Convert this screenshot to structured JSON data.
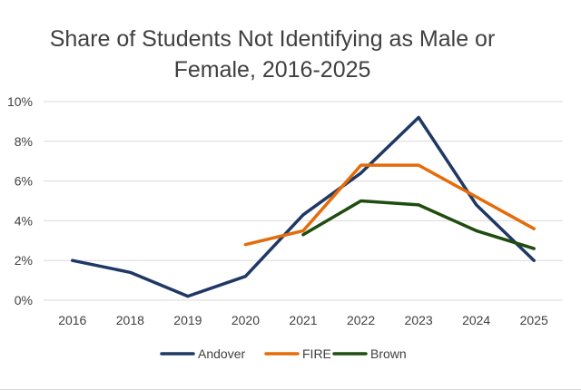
{
  "chart_data": {
    "type": "line",
    "title": "Share of Students Not Identifying as Male or Female, 2016-2025",
    "title_lines": [
      "Share of Students Not Identifying as Male or",
      "Female, 2016-2025"
    ],
    "categories": [
      "2016",
      "2018",
      "2019",
      "2020",
      "2021",
      "2022",
      "2023",
      "2024",
      "2025"
    ],
    "ylim": [
      0,
      10
    ],
    "y_ticks": [
      "0%",
      "2%",
      "4%",
      "6%",
      "8%",
      "10%"
    ],
    "y_tick_values": [
      0,
      2,
      4,
      6,
      8,
      10
    ],
    "grid": true,
    "legend_position": "bottom",
    "series": [
      {
        "name": "Andover",
        "color": "#1f3864",
        "values": [
          2.0,
          1.4,
          0.2,
          1.2,
          4.3,
          6.4,
          9.2,
          4.8,
          2.0
        ]
      },
      {
        "name": "FIRE",
        "color": "#e46c0a",
        "values": [
          null,
          null,
          null,
          2.8,
          3.5,
          6.8,
          6.8,
          5.2,
          3.6
        ]
      },
      {
        "name": "Brown",
        "color": "#1e4d0f",
        "values": [
          null,
          null,
          null,
          null,
          3.3,
          5.0,
          4.8,
          3.5,
          2.6
        ]
      }
    ]
  }
}
